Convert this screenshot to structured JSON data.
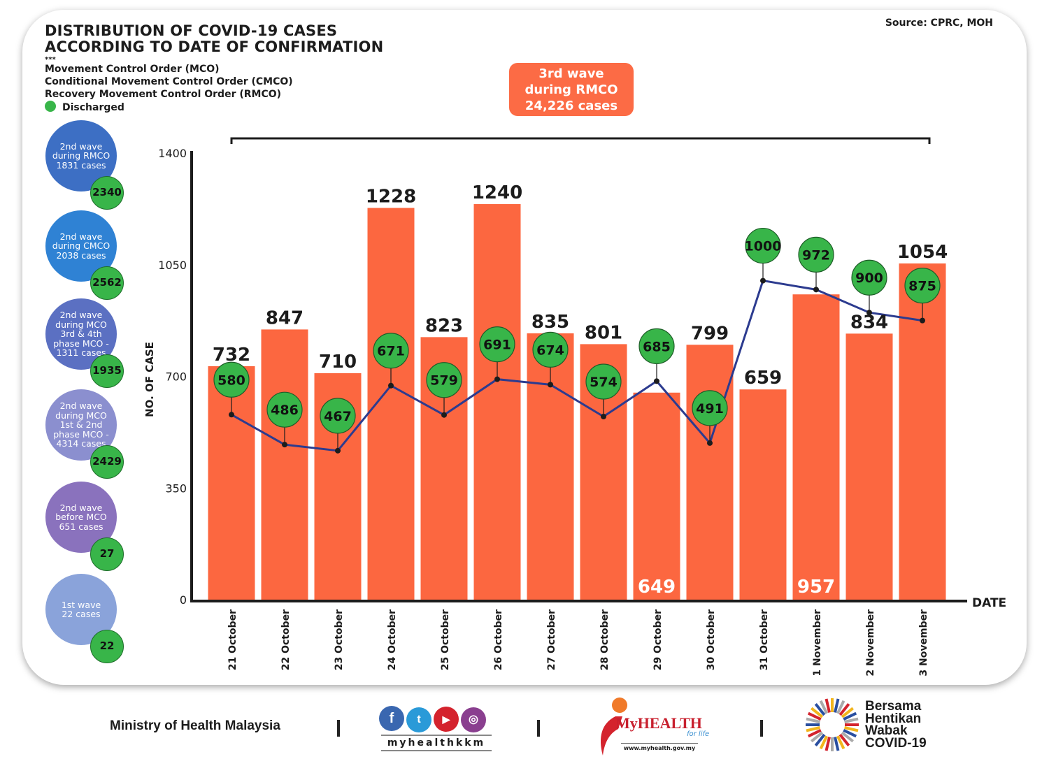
{
  "header": {
    "title_line1": "DISTRIBUTION OF COVID-19 CASES",
    "title_line2": "ACCORDING TO DATE OF CONFIRMATION",
    "stars": "***",
    "notes": [
      "Movement Control Order (MCO)",
      "Conditional Movement Control Order (CMCO)",
      "Recovery Movement Control Order (RMCO)"
    ],
    "discharged_legend": "Discharged",
    "source": "Source: CPRC, MOH"
  },
  "banner": {
    "line1": "3rd wave",
    "line2": "during RMCO",
    "line3": "24,226 cases"
  },
  "waves": [
    {
      "lines": [
        "2nd wave",
        "during RMCO",
        "1831 cases"
      ],
      "discharged": "2340",
      "color": "#3d6fc4"
    },
    {
      "lines": [
        "2nd wave",
        "during CMCO",
        "2038 cases"
      ],
      "discharged": "2562",
      "color": "#2f82d4"
    },
    {
      "lines": [
        "2nd wave",
        "during MCO",
        "3rd & 4th",
        "phase MCO -",
        "1311 cases"
      ],
      "discharged": "1935",
      "color": "#5b70c2"
    },
    {
      "lines": [
        "2nd wave",
        "during MCO",
        "1st & 2nd",
        "phase MCO -",
        "4314 cases"
      ],
      "discharged": "2429",
      "color": "#8b8fcf"
    },
    {
      "lines": [
        "2nd wave",
        "before MCO",
        "651 cases"
      ],
      "discharged": "27",
      "color": "#8a72bd"
    },
    {
      "lines": [
        "1st wave",
        "22 cases"
      ],
      "discharged": "22",
      "color": "#8aa3da"
    }
  ],
  "chart_data": {
    "type": "bar",
    "xlabel": "DATE",
    "ylabel": "NO. OF CASE",
    "ylim": [
      0,
      1400
    ],
    "yticks": [
      0,
      350,
      700,
      1050,
      1400
    ],
    "categories": [
      "21 October",
      "22 October",
      "23 October",
      "24 October",
      "25 October",
      "26 October",
      "27 October",
      "28 October",
      "29 October",
      "30 October",
      "31 October",
      "1 November",
      "2 November",
      "3 November"
    ],
    "series": [
      {
        "type": "bar",
        "values": [
          732,
          847,
          710,
          1228,
          823,
          1240,
          835,
          801,
          649,
          799,
          659,
          957,
          834,
          1054
        ],
        "color": "#fc6740"
      },
      {
        "type": "line",
        "name": "Discharged",
        "values": [
          580,
          486,
          467,
          671,
          579,
          691,
          674,
          574,
          685,
          491,
          1000,
          972,
          900,
          875
        ],
        "color": "#2c3b8f",
        "marker_color": "#38b549"
      }
    ],
    "grid": false
  },
  "footer": {
    "ministry": "Ministry of Health Malaysia",
    "social_handle": "myhealthkkm",
    "social_icons": [
      "facebook-icon",
      "twitter-icon",
      "youtube-icon",
      "instagram-icon"
    ],
    "myhealth_logo": "MyHEALTH",
    "myhealth_tagline": "for life",
    "myhealth_url": "www.myhealth.gov.my",
    "campaign": [
      "Bersama",
      "Hentikan",
      "Wabak",
      "COVID-19"
    ]
  }
}
